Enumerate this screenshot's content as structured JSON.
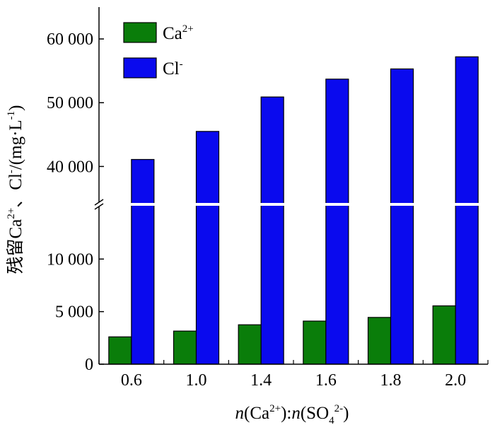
{
  "chart_data": {
    "type": "bar",
    "categories": [
      "0.6",
      "1.0",
      "1.4",
      "1.6",
      "1.8",
      "2.0"
    ],
    "series": [
      {
        "name": "Ca2+",
        "color": "#0a7d0a",
        "values": [
          2600,
          3150,
          3750,
          4100,
          4450,
          5550
        ]
      },
      {
        "name": "Cl-",
        "color": "#0a0aee",
        "values": [
          41100,
          45500,
          50900,
          53700,
          55300,
          57200
        ]
      }
    ],
    "axis_break": {
      "lower": 15000,
      "upper": 34500
    },
    "ylim_lower": [
      0,
      15000
    ],
    "ylim_upper": [
      34500,
      65000
    ],
    "y_ticks": [
      {
        "value": 0,
        "label": "0"
      },
      {
        "value": 5000,
        "label": "5 000"
      },
      {
        "value": 10000,
        "label": "10 000"
      },
      {
        "value": 40000,
        "label": "40 000"
      },
      {
        "value": 50000,
        "label": "50 000"
      },
      {
        "value": 60000,
        "label": "60 000"
      }
    ],
    "legend": {
      "position": "top-left",
      "items": [
        {
          "text": "Ca",
          "sup": "2+",
          "color": "#0a7d0a"
        },
        {
          "text": "Cl",
          "sup": "-",
          "color": "#0a0aee"
        }
      ]
    },
    "xlabel": {
      "italic_n1": "n",
      "part1": "(Ca",
      "sup1": "2+",
      "part2": "):",
      "italic_n2": "n",
      "part3": "(SO",
      "sub": "4",
      "sup2": "2-",
      "part4": ")"
    },
    "ylabel": {
      "prefix": "残留Ca",
      "sup1": "2+",
      "mid": "、Cl",
      "sup2": "-",
      "mid2": "/(mg·L",
      "sup3": "-1",
      "suffix": ")"
    }
  }
}
